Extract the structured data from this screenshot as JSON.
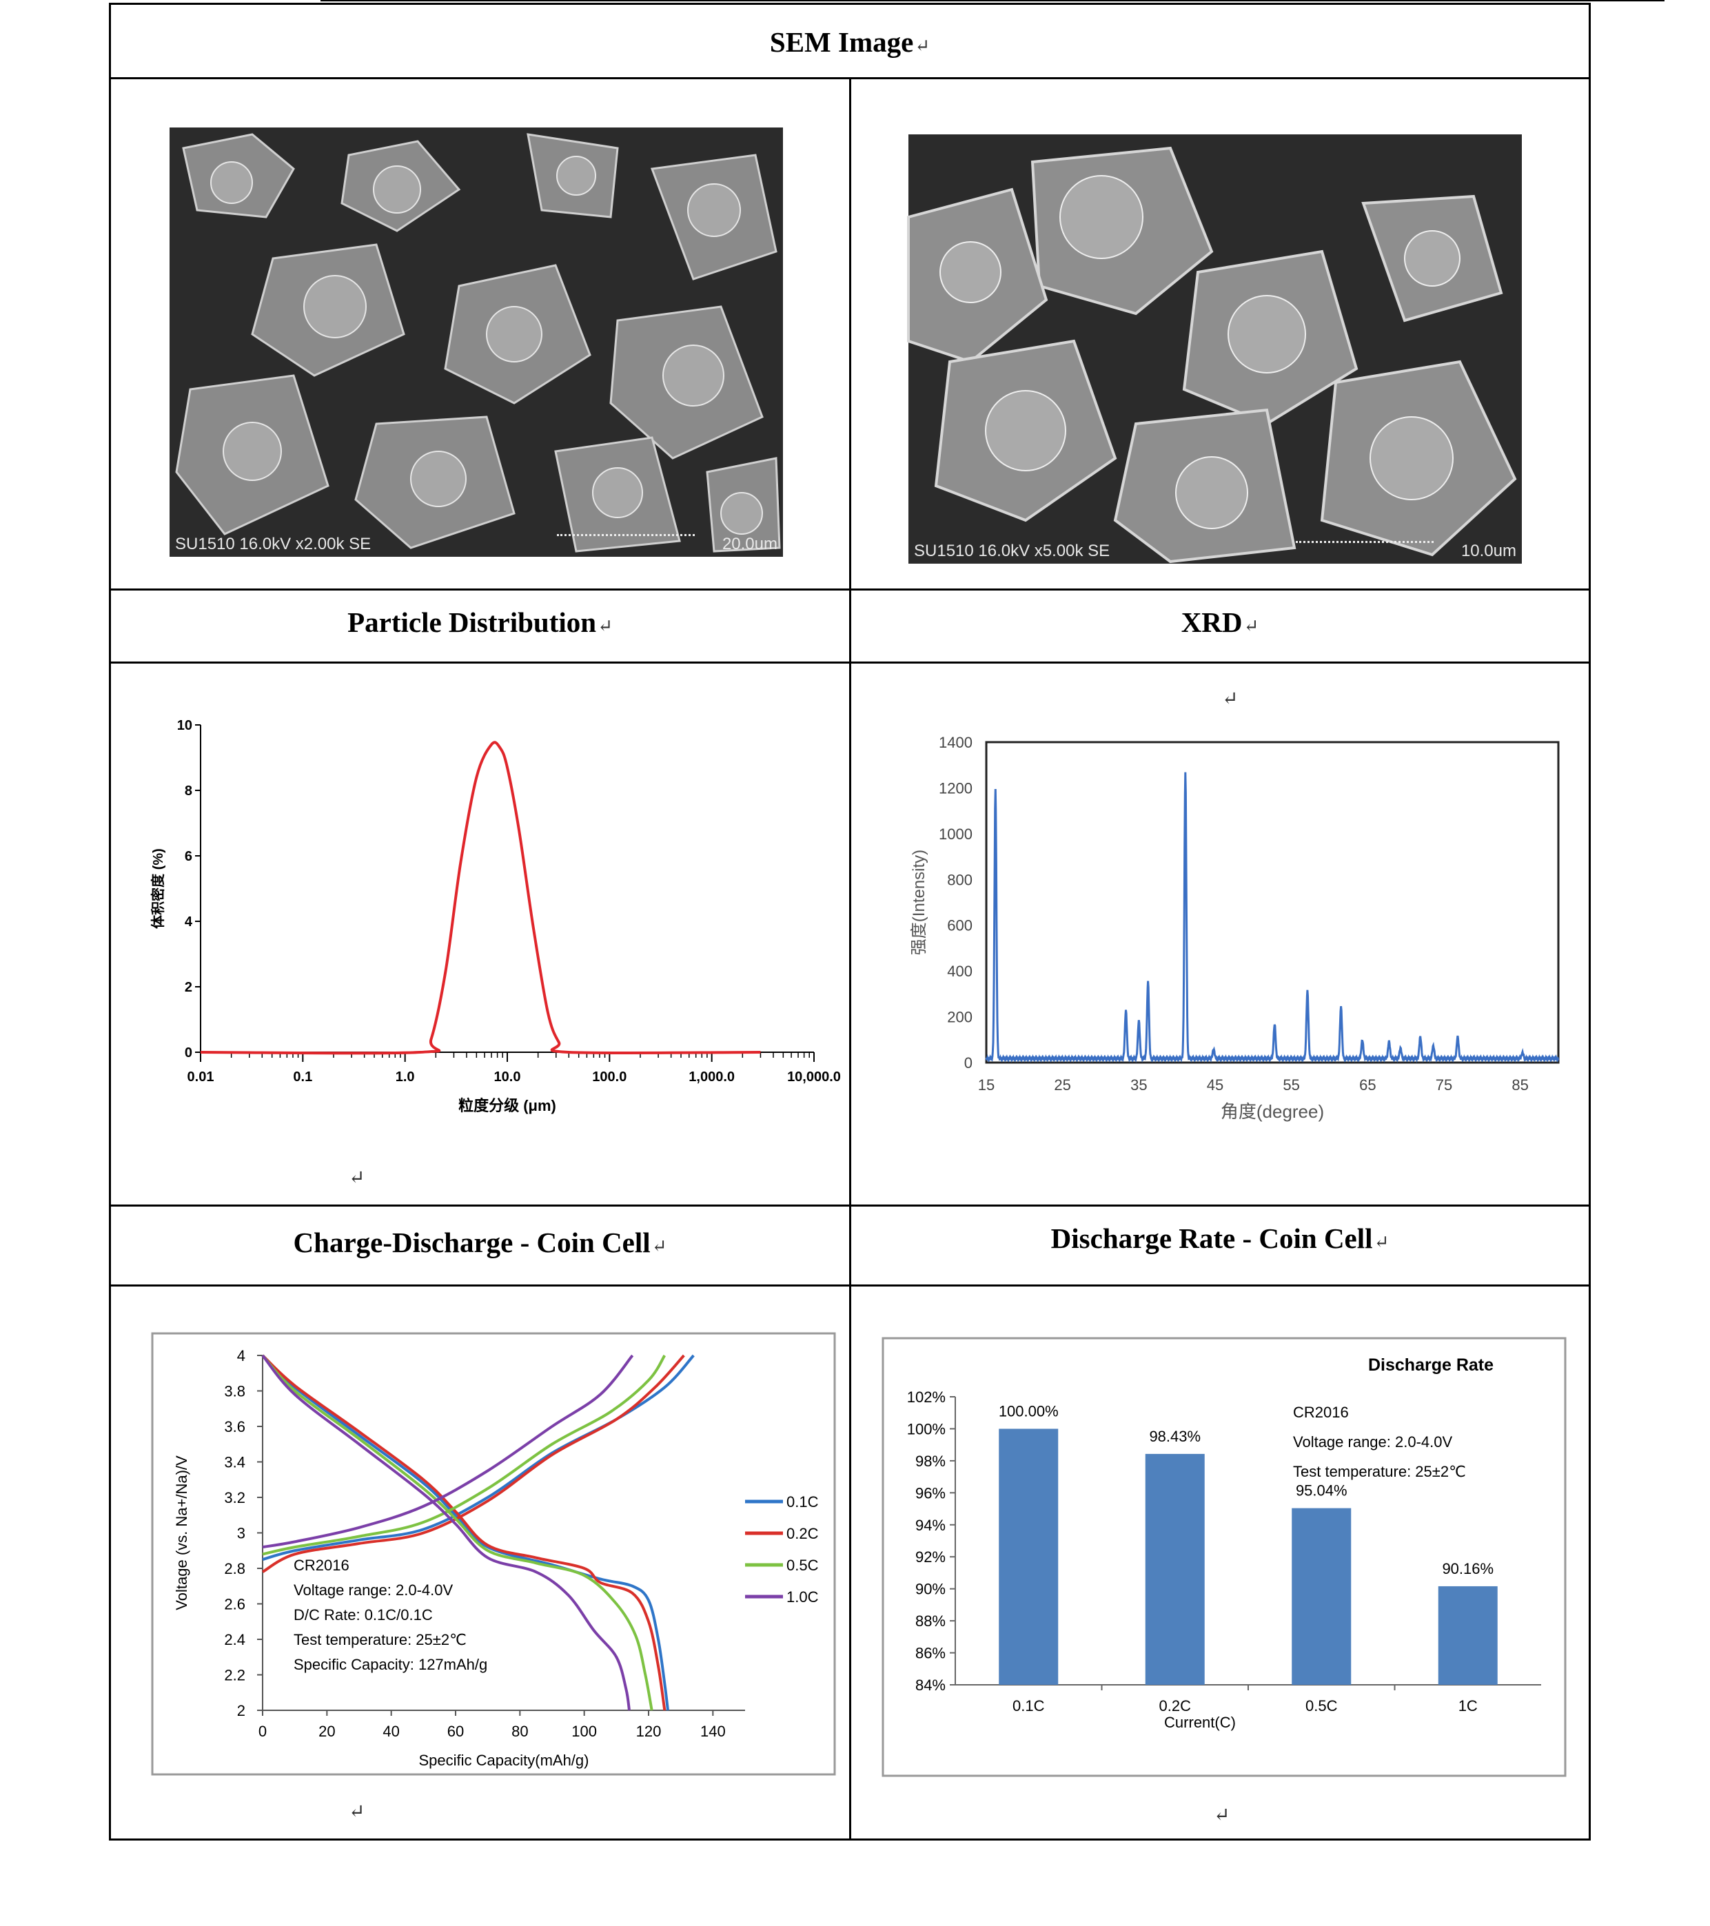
{
  "sections": {
    "sem": {
      "title": "SEM Image"
    },
    "psd": {
      "title": "Particle Distribution"
    },
    "xrd": {
      "title": "XRD"
    },
    "cd": {
      "title": "Charge-Discharge - Coin Cell"
    },
    "rate": {
      "title": "Discharge Rate - Coin Cell"
    }
  },
  "return_mark": "↵",
  "sem_images": [
    {
      "caption_left": "SU1510 16.0kV x2.00k SE",
      "caption_right": "20.0um"
    },
    {
      "caption_left": "SU1510 16.0kV x5.00k SE",
      "caption_right": "10.0um"
    }
  ],
  "colors": {
    "psd_curve": "#e0262b",
    "xrd_line": "#3a6fc4",
    "bar": "#4f81bd",
    "c01": "#2e75c8",
    "c02": "#d9302a",
    "c05": "#7dc242",
    "c10": "#7b3fa8"
  },
  "chart_data": [
    {
      "type": "line",
      "id": "psd",
      "xlabel": "粒度分级 (μm)",
      "ylabel": "体积密度 (%)",
      "x_scale": "log",
      "x_ticks": [
        "0.01",
        "0.1",
        "1.0",
        "10.0",
        "100.0",
        "1,000.0",
        "10,000.0"
      ],
      "y_ticks": [
        "0",
        "2",
        "4",
        "6",
        "8",
        "10"
      ],
      "xlim": [
        0.01,
        10000
      ],
      "ylim": [
        0,
        10
      ],
      "series": [
        {
          "x": [
            0.01,
            1.4,
            1.8,
            2.5,
            3.5,
            5.0,
            7.0,
            8.5,
            10.0,
            13.0,
            18.0,
            25.0,
            32.0,
            40.0,
            3000
          ],
          "y": [
            0,
            0,
            0.4,
            2.5,
            5.8,
            8.4,
            9.4,
            9.3,
            8.7,
            6.8,
            3.8,
            1.2,
            0.3,
            0,
            0
          ]
        }
      ]
    },
    {
      "type": "line",
      "id": "xrd",
      "xlabel": "角度(degree)",
      "ylabel": "强度(Intensity)",
      "x_ticks": [
        "15",
        "25",
        "35",
        "45",
        "55",
        "65",
        "75",
        "85"
      ],
      "y_ticks": [
        "0",
        "200",
        "400",
        "600",
        "800",
        "1000",
        "1200",
        "1400"
      ],
      "xlim": [
        15,
        90
      ],
      "ylim": [
        0,
        1400
      ],
      "baseline": 18,
      "peaks": [
        {
          "x": 16.2,
          "y": 1175
        },
        {
          "x": 33.3,
          "y": 210
        },
        {
          "x": 35.0,
          "y": 165
        },
        {
          "x": 36.2,
          "y": 335
        },
        {
          "x": 41.1,
          "y": 1250
        },
        {
          "x": 44.8,
          "y": 40
        },
        {
          "x": 52.8,
          "y": 150
        },
        {
          "x": 57.1,
          "y": 295
        },
        {
          "x": 61.5,
          "y": 225
        },
        {
          "x": 64.3,
          "y": 80
        },
        {
          "x": 67.8,
          "y": 75
        },
        {
          "x": 69.3,
          "y": 45
        },
        {
          "x": 71.9,
          "y": 95
        },
        {
          "x": 73.6,
          "y": 55
        },
        {
          "x": 76.8,
          "y": 95
        },
        {
          "x": 85.3,
          "y": 25
        }
      ]
    },
    {
      "type": "line",
      "id": "charge_discharge",
      "xlabel": "Specific Capacity(mAh/g)",
      "ylabel": "Voltage (vs. Na+/Na)/V",
      "x_ticks": [
        "0",
        "20",
        "40",
        "60",
        "80",
        "100",
        "120",
        "140"
      ],
      "y_ticks": [
        "2",
        "2.2",
        "2.4",
        "2.6",
        "2.8",
        "3",
        "3.2",
        "3.4",
        "3.6",
        "3.8",
        "4"
      ],
      "xlim": [
        0,
        150
      ],
      "ylim": [
        2,
        4
      ],
      "annotation": [
        "CR2016",
        "Voltage range: 2.0-4.0V",
        "D/C Rate: 0.1C/0.1C",
        "Test temperature: 25±2℃",
        "Specific Capacity: 127mAh/g"
      ],
      "series": [
        {
          "name": "0.1C",
          "color_key": "c01",
          "charge": {
            "x": [
              0,
              10,
              30,
              50,
              70,
              90,
              110,
              125,
              134
            ],
            "y": [
              2.85,
              2.9,
              2.96,
              3.02,
              3.2,
              3.45,
              3.64,
              3.82,
              4.0
            ]
          },
          "discharge": {
            "x": [
              0,
              10,
              30,
              50,
              60,
              70,
              90,
              105,
              115,
              120,
              123,
              125,
              126
            ],
            "y": [
              4.0,
              3.82,
              3.55,
              3.28,
              3.1,
              2.92,
              2.82,
              2.74,
              2.7,
              2.62,
              2.4,
              2.15,
              2.0
            ]
          }
        },
        {
          "name": "0.2C",
          "color_key": "c02",
          "charge": {
            "x": [
              0,
              10,
              30,
              50,
              70,
              90,
              110,
              122,
              131
            ],
            "y": [
              2.78,
              2.88,
              2.94,
              3.0,
              3.18,
              3.44,
              3.64,
              3.82,
              4.0
            ]
          },
          "discharge": {
            "x": [
              0,
              10,
              30,
              50,
              60,
              70,
              85,
              100,
              105,
              115,
              120,
              123,
              125
            ],
            "y": [
              4.0,
              3.83,
              3.57,
              3.3,
              3.12,
              2.93,
              2.86,
              2.8,
              2.72,
              2.66,
              2.5,
              2.25,
              2.0
            ]
          }
        },
        {
          "name": "0.5C",
          "color_key": "c05",
          "charge": {
            "x": [
              0,
              10,
              30,
              50,
              70,
              90,
              108,
              120,
              125
            ],
            "y": [
              2.88,
              2.92,
              2.98,
              3.06,
              3.25,
              3.5,
              3.68,
              3.86,
              4.0
            ]
          },
          "discharge": {
            "x": [
              0,
              10,
              30,
              50,
              60,
              70,
              85,
              100,
              110,
              116,
              119,
              121
            ],
            "y": [
              4.0,
              3.8,
              3.53,
              3.25,
              3.08,
              2.9,
              2.83,
              2.76,
              2.6,
              2.42,
              2.2,
              2.0
            ]
          }
        },
        {
          "name": "1.0C",
          "color_key": "c10",
          "charge": {
            "x": [
              0,
              10,
              30,
              50,
              70,
              90,
              105,
              115
            ],
            "y": [
              2.92,
              2.95,
              3.03,
              3.15,
              3.35,
              3.6,
              3.78,
              4.0
            ]
          },
          "discharge": {
            "x": [
              0,
              10,
              30,
              50,
              60,
              70,
              85,
              95,
              103,
              110,
              113,
              114
            ],
            "y": [
              4.0,
              3.78,
              3.5,
              3.22,
              3.05,
              2.86,
              2.78,
              2.65,
              2.45,
              2.3,
              2.12,
              2.0
            ]
          }
        }
      ]
    },
    {
      "type": "bar",
      "id": "discharge_rate",
      "title": "Discharge Rate",
      "xlabel": "Current(C)",
      "categories": [
        "0.1C",
        "0.2C",
        "0.5C",
        "1C"
      ],
      "values": [
        100.0,
        98.43,
        95.04,
        90.16
      ],
      "data_labels": [
        "100.00%",
        "98.43%",
        "95.04%",
        "90.16%"
      ],
      "y_ticks": [
        "84%",
        "86%",
        "88%",
        "90%",
        "92%",
        "94%",
        "96%",
        "98%",
        "100%",
        "102%"
      ],
      "ylim": [
        84,
        102
      ],
      "annotation": [
        "CR2016",
        "Voltage range: 2.0-4.0V",
        "Test temperature: 25±2℃"
      ]
    }
  ]
}
